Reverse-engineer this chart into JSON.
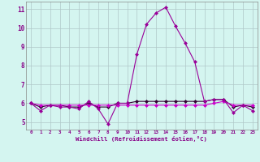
{
  "xlabel": "Windchill (Refroidissement éolien,°C)",
  "x_hours": [
    0,
    1,
    2,
    3,
    4,
    5,
    6,
    7,
    8,
    9,
    10,
    11,
    12,
    13,
    14,
    15,
    16,
    17,
    18,
    19,
    20,
    21,
    22,
    23
  ],
  "line1": [
    6.0,
    5.6,
    5.9,
    5.8,
    5.8,
    5.7,
    6.1,
    5.7,
    4.9,
    6.0,
    6.0,
    8.6,
    10.2,
    10.8,
    11.1,
    10.1,
    9.2,
    8.2,
    6.1,
    6.2,
    6.2,
    5.5,
    5.9,
    5.6
  ],
  "line2": [
    6.0,
    5.9,
    5.9,
    5.9,
    5.9,
    5.9,
    5.9,
    5.9,
    5.9,
    5.9,
    5.9,
    5.9,
    5.9,
    5.9,
    5.9,
    5.9,
    5.9,
    5.9,
    5.9,
    6.0,
    6.1,
    5.9,
    5.9,
    5.9
  ],
  "line3": [
    6.0,
    5.8,
    5.9,
    5.9,
    5.8,
    5.8,
    6.0,
    5.8,
    5.8,
    6.0,
    6.0,
    6.1,
    6.1,
    6.1,
    6.1,
    6.1,
    6.1,
    6.1,
    6.1,
    6.2,
    6.2,
    5.8,
    5.9,
    5.8
  ],
  "line_color1": "#990099",
  "line_color2": "#cc00cc",
  "line_color3": "#330033",
  "bg_color": "#d4f5f0",
  "grid_color": "#b0c8c8",
  "ylim": [
    4.6,
    11.4
  ],
  "yticks": [
    5,
    6,
    7,
    8,
    9,
    10,
    11
  ],
  "fig_bg": "#d4f5f0"
}
